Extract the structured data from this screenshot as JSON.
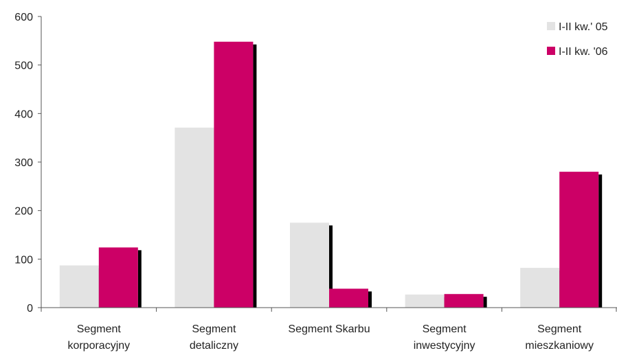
{
  "chart_data": {
    "type": "bar",
    "categories": [
      [
        "Segment",
        "korporacyjny"
      ],
      [
        "Segment",
        "detaliczny"
      ],
      [
        "Segment Skarbu"
      ],
      [
        "Segment",
        "inwestycyjny"
      ],
      [
        "Segment",
        "mieszkaniowy"
      ]
    ],
    "series": [
      {
        "name": "I-II kw.' 05",
        "color": "#e3e3e3",
        "values": [
          87,
          371,
          175,
          27,
          82
        ]
      },
      {
        "name": "I-II kw. '06",
        "color": "#cc0066",
        "values": [
          124,
          548,
          39,
          28,
          280
        ]
      }
    ],
    "yticks": [
      0,
      100,
      200,
      300,
      400,
      500,
      600
    ],
    "ylim": [
      0,
      600
    ],
    "legend_position": "top-right",
    "grid": false,
    "shadow_color": "#000000"
  }
}
